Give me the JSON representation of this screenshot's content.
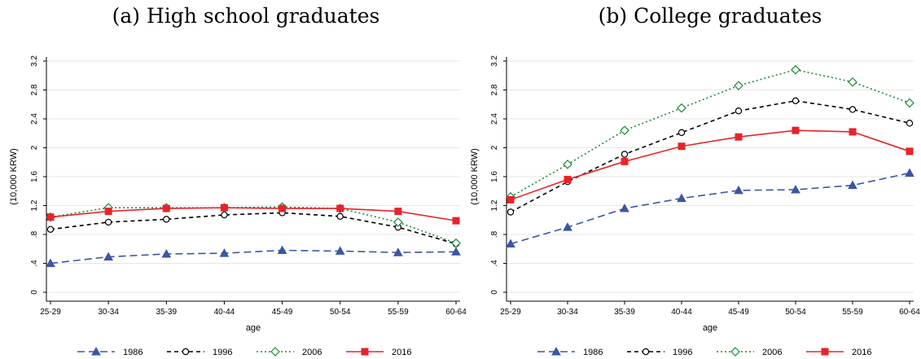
{
  "chart_data": [
    {
      "type": "line",
      "title": "(a) High school graduates",
      "xlabel": "age",
      "ylabel": "(10,000 KRW)",
      "categories": [
        "25-29",
        "30-34",
        "35-39",
        "40-44",
        "45-49",
        "50-54",
        "55-59",
        "60-64"
      ],
      "ylim": [
        0,
        3.2
      ],
      "yticks": [
        0,
        0.4,
        0.8,
        1.2,
        1.6,
        2,
        2.4,
        2.8,
        3.2
      ],
      "ytick_labels": [
        "0",
        ".4",
        ".8",
        "1.2",
        "1.6",
        "2",
        "2.4",
        "2.8",
        "3.2"
      ],
      "grid": true,
      "legend": "bottom",
      "series": [
        {
          "name": "1986",
          "values": [
            0.4,
            0.49,
            0.53,
            0.54,
            0.58,
            0.57,
            0.55,
            0.56
          ]
        },
        {
          "name": "1996",
          "values": [
            0.87,
            0.97,
            1.01,
            1.07,
            1.1,
            1.05,
            0.9,
            0.67
          ]
        },
        {
          "name": "2006",
          "values": [
            1.04,
            1.17,
            1.17,
            1.17,
            1.18,
            1.16,
            0.97,
            0.68
          ]
        },
        {
          "name": "2016",
          "values": [
            1.04,
            1.12,
            1.16,
            1.17,
            1.16,
            1.16,
            1.12,
            0.99
          ]
        }
      ]
    },
    {
      "type": "line",
      "title": "(b) College graduates",
      "xlabel": "age",
      "ylabel": "(10,000 KRW)",
      "categories": [
        "25-29",
        "30-34",
        "35-39",
        "40-44",
        "45-49",
        "50-54",
        "55-59",
        "60-64"
      ],
      "ylim": [
        0,
        3.2
      ],
      "yticks": [
        0,
        0.4,
        0.8,
        1.2,
        1.6,
        2,
        2.4,
        2.8,
        3.2
      ],
      "ytick_labels": [
        "0",
        ".4",
        ".8",
        "1.2",
        "1.6",
        "2",
        "2.4",
        "2.8",
        "3.2"
      ],
      "grid": true,
      "legend": "bottom",
      "series": [
        {
          "name": "1986",
          "values": [
            0.67,
            0.9,
            1.16,
            1.3,
            1.41,
            1.42,
            1.48,
            1.65
          ]
        },
        {
          "name": "1996",
          "values": [
            1.11,
            1.53,
            1.91,
            2.21,
            2.51,
            2.65,
            2.53,
            2.34
          ]
        },
        {
          "name": "2006",
          "values": [
            1.32,
            1.77,
            2.24,
            2.55,
            2.86,
            3.08,
            2.91,
            2.62
          ]
        },
        {
          "name": "2016",
          "values": [
            1.28,
            1.56,
            1.81,
            2.02,
            2.15,
            2.24,
            2.22,
            1.95
          ]
        }
      ]
    }
  ],
  "series_styles": [
    {
      "color": "#3b56a3",
      "dash": "9,5",
      "marker": "triangle"
    },
    {
      "color": "#000000",
      "dash": "5,4",
      "marker": "circle"
    },
    {
      "color": "#1d8a3a",
      "dash": "2,3",
      "marker": "diamond"
    },
    {
      "color": "#e8232a",
      "dash": "",
      "marker": "square"
    }
  ]
}
